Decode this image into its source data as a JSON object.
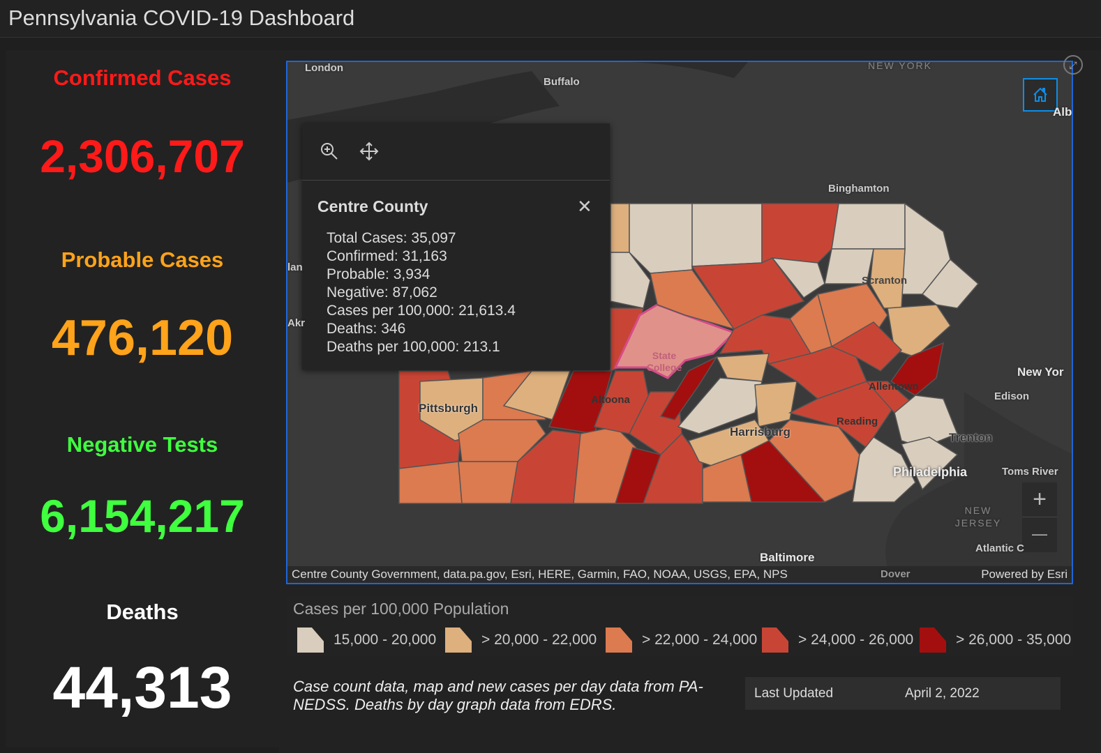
{
  "header": {
    "title": "Pennsylvania COVID-19 Dashboard"
  },
  "stats": [
    {
      "label": "Confirmed Cases",
      "value": "2,306,707",
      "color": "#ff1a1a"
    },
    {
      "label": "Probable Cases",
      "value": "476,120",
      "color": "#ffa31a"
    },
    {
      "label": "Negative Tests",
      "value": "6,154,217",
      "color": "#3fff3f"
    },
    {
      "label": "Deaths",
      "value": "44,313",
      "color": "#ffffff"
    }
  ],
  "map": {
    "labels": {
      "london": "London",
      "buffalo": "Buffalo",
      "new_york_state": "NEW YORK",
      "albany": "Alb",
      "binghamton": "Binghamton",
      "scranton": "Scranton",
      "state_college": "State College",
      "altoona": "Altoona",
      "pittsburgh": "Pittsburgh",
      "harrisburg": "Harrisburg",
      "reading": "Reading",
      "allentown": "Allentown",
      "new_york_city": "New Yor",
      "edison": "Edison",
      "trenton": "Trenton",
      "philadelphia": "Philadelphia",
      "toms_river": "Toms River",
      "new_jersey": "NEW JERSEY",
      "atlantic_city": "Atlantic C",
      "baltimore": "Baltimore",
      "dover": "Dover",
      "lan": "lan",
      "akr": "Akr"
    },
    "attribution": "Centre County Government, data.pa.gov, Esri, HERE, Garmin, FAO, NOAA, USGS, EPA, NPS",
    "powered_by": "Powered by Esri",
    "zoom_in": "+",
    "zoom_out": "—"
  },
  "popup": {
    "title": "Centre County",
    "rows": [
      "Total Cases: 35,097",
      "Confirmed: 31,163",
      "Probable: 3,934",
      "Negative: 87,062",
      "Cases per 100,000: 21,613.4",
      "Deaths: 346",
      "Deaths per 100,000: 213.1"
    ]
  },
  "legend": {
    "title": "Cases per 100,000 Population",
    "items": [
      {
        "label": "15,000 - 20,000",
        "color": "#d9cdbd"
      },
      {
        "label": "> 20,000 - 22,000",
        "color": "#ddb07e"
      },
      {
        "label": "> 22,000 - 24,000",
        "color": "#dc7a50"
      },
      {
        "label": "> 24,000 - 26,000",
        "color": "#c84535"
      },
      {
        "label": "> 26,000 - 35,000",
        "color": "#a30f0f"
      }
    ]
  },
  "footer": {
    "note": "Case count data, map and new cases per day data from PA-NEDSS.  Deaths by day graph data from EDRS.",
    "last_updated_label": "Last Updated",
    "last_updated_value": "April 2, 2022"
  }
}
